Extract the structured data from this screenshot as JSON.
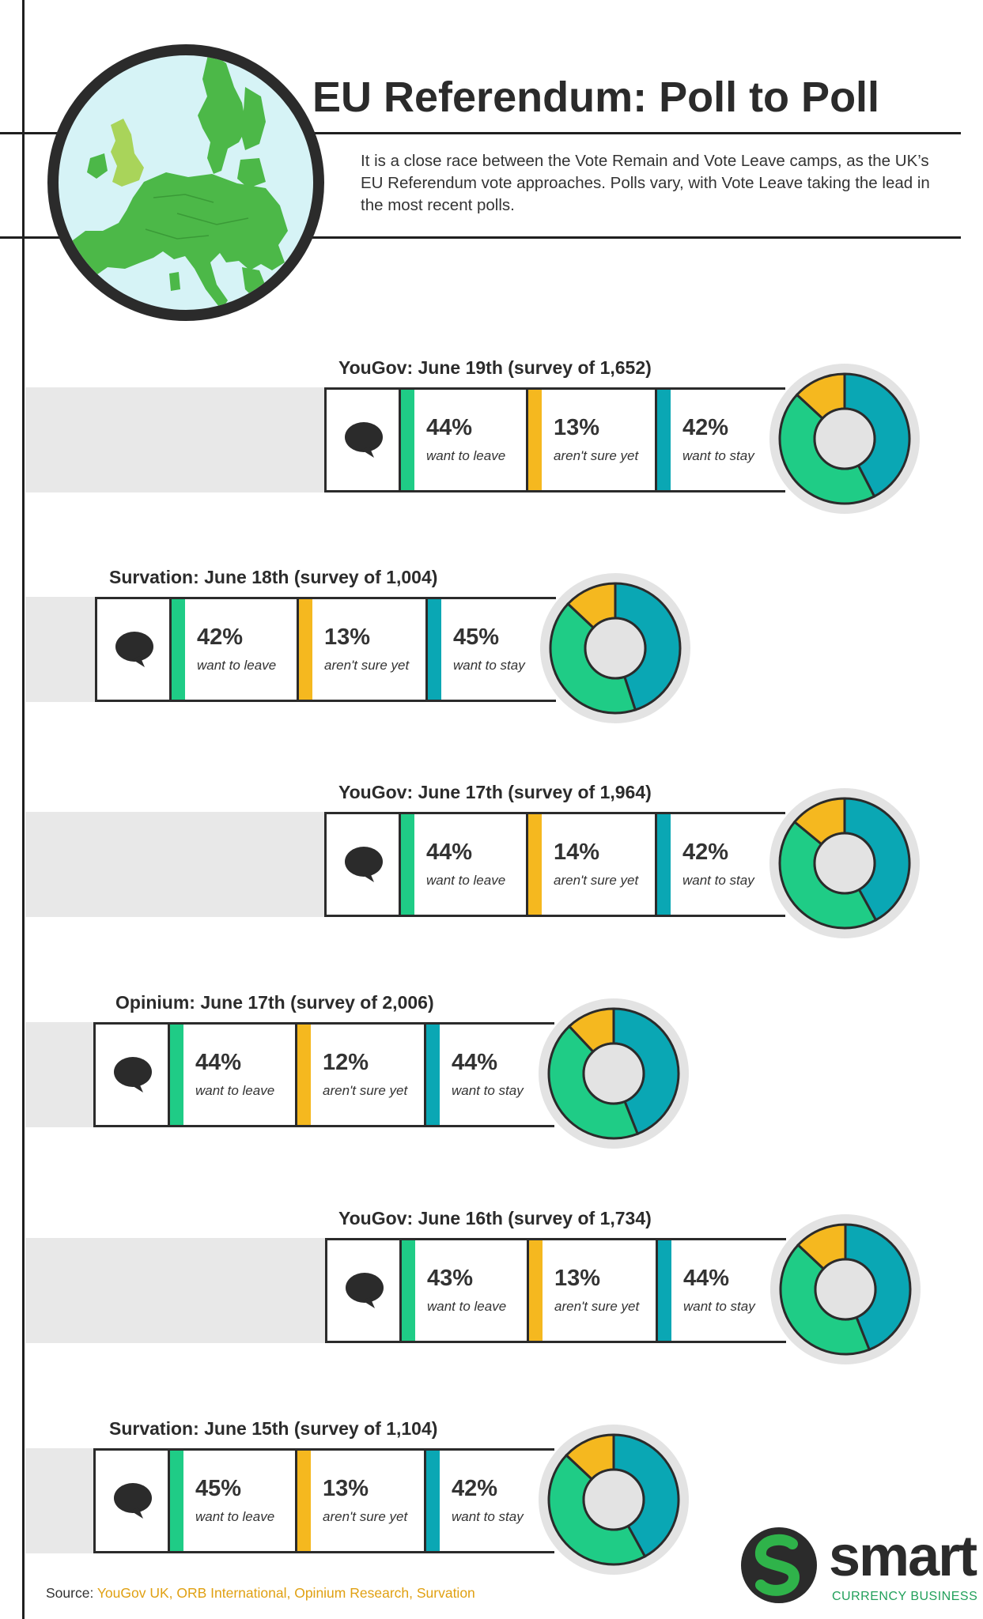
{
  "header": {
    "title": "EU Referendum: Poll to Poll",
    "intro": "It is a close race between the Vote Remain and Vote Leave camps, as the UK’s EU Referendum vote approaches. Polls vary, with Vote Leave taking the lead in the most recent polls."
  },
  "colors": {
    "leave": "#1fcc86",
    "unsure": "#f5b81f",
    "stay": "#0aa7b4",
    "map_green": "#4cb848",
    "uk_green": "#a9d45a"
  },
  "labels": {
    "leave": "want to leave",
    "unsure": "aren't sure yet",
    "stay": "want to stay"
  },
  "polls": [
    {
      "heading": "YouGov: June 19th (survey of 1,652)",
      "leave": "44%",
      "unsure": "13%",
      "stay": "42%"
    },
    {
      "heading": "Survation: June 18th (survey of 1,004)",
      "leave": "42%",
      "unsure": "13%",
      "stay": "45%"
    },
    {
      "heading": "YouGov: June 17th (survey of 1,964)",
      "leave": "44%",
      "unsure": "14%",
      "stay": "42%"
    },
    {
      "heading": "Opinium: June 17th (survey of 2,006)",
      "leave": "44%",
      "unsure": "12%",
      "stay": "44%"
    },
    {
      "heading": "YouGov: June 16th (survey of 1,734)",
      "leave": "43%",
      "unsure": "13%",
      "stay": "44%"
    },
    {
      "heading": "Survation: June 15th (survey of 1,104)",
      "leave": "45%",
      "unsure": "13%",
      "stay": "42%"
    }
  ],
  "footer": {
    "source_label": "Source:",
    "source_list": "YouGov UK, ORB International, Opinium Research, Survation"
  },
  "logo": {
    "word": "smart",
    "sub": "CURRENCY BUSINESS"
  },
  "icons": {
    "bubble": "speech-bubble-icon",
    "map": "europe-map-icon"
  }
}
